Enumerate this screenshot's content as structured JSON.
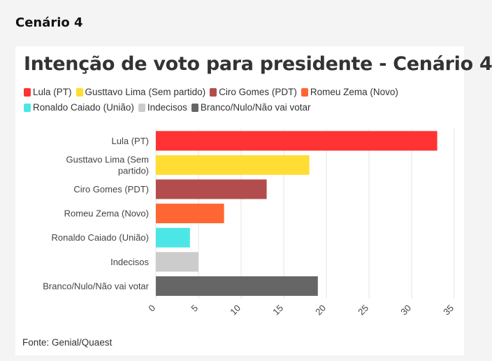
{
  "section_title": "Cenário 4",
  "source": "Fonte: Genial/Quaest",
  "chart_data": {
    "type": "bar",
    "orientation": "horizontal",
    "title": "Intenção de voto para presidente - Cenário 4",
    "categories": [
      "Lula (PT)",
      "Gusttavo Lima (Sem partido)",
      "Ciro Gomes (PDT)",
      "Romeu Zema (Novo)",
      "Ronaldo Caiado (União)",
      "Indecisos",
      "Branco/Nulo/Não vai votar"
    ],
    "category_label_lines": [
      [
        "Lula (PT)"
      ],
      [
        "Gusttavo Lima (Sem",
        "partido)"
      ],
      [
        "Ciro Gomes (PDT)"
      ],
      [
        "Romeu Zema (Novo)"
      ],
      [
        "Ronaldo Caiado (União)"
      ],
      [
        "Indecisos"
      ],
      [
        "Branco/Nulo/Não vai votar"
      ]
    ],
    "values": [
      33,
      18,
      13,
      8,
      4,
      5,
      19
    ],
    "colors": [
      "#ff3333",
      "#ffdd33",
      "#b34d4d",
      "#ff6633",
      "#4de6e6",
      "#cccccc",
      "#666666"
    ],
    "xlim": [
      0,
      35
    ],
    "xticks": [
      0,
      5,
      10,
      15,
      20,
      25,
      30,
      35
    ],
    "grid": true,
    "legend_position": "top",
    "legend": [
      {
        "label": "Lula (PT)",
        "color": "#ff3333"
      },
      {
        "label": "Gusttavo Lima (Sem partido)",
        "color": "#ffdd33"
      },
      {
        "label": "Ciro Gomes (PDT)",
        "color": "#b34d4d"
      },
      {
        "label": "Romeu Zema (Novo)",
        "color": "#ff6633"
      },
      {
        "label": "Ronaldo Caiado (União)",
        "color": "#4de6e6"
      },
      {
        "label": "Indecisos",
        "color": "#cccccc"
      },
      {
        "label": "Branco/Nulo/Não vai votar",
        "color": "#666666"
      }
    ]
  }
}
